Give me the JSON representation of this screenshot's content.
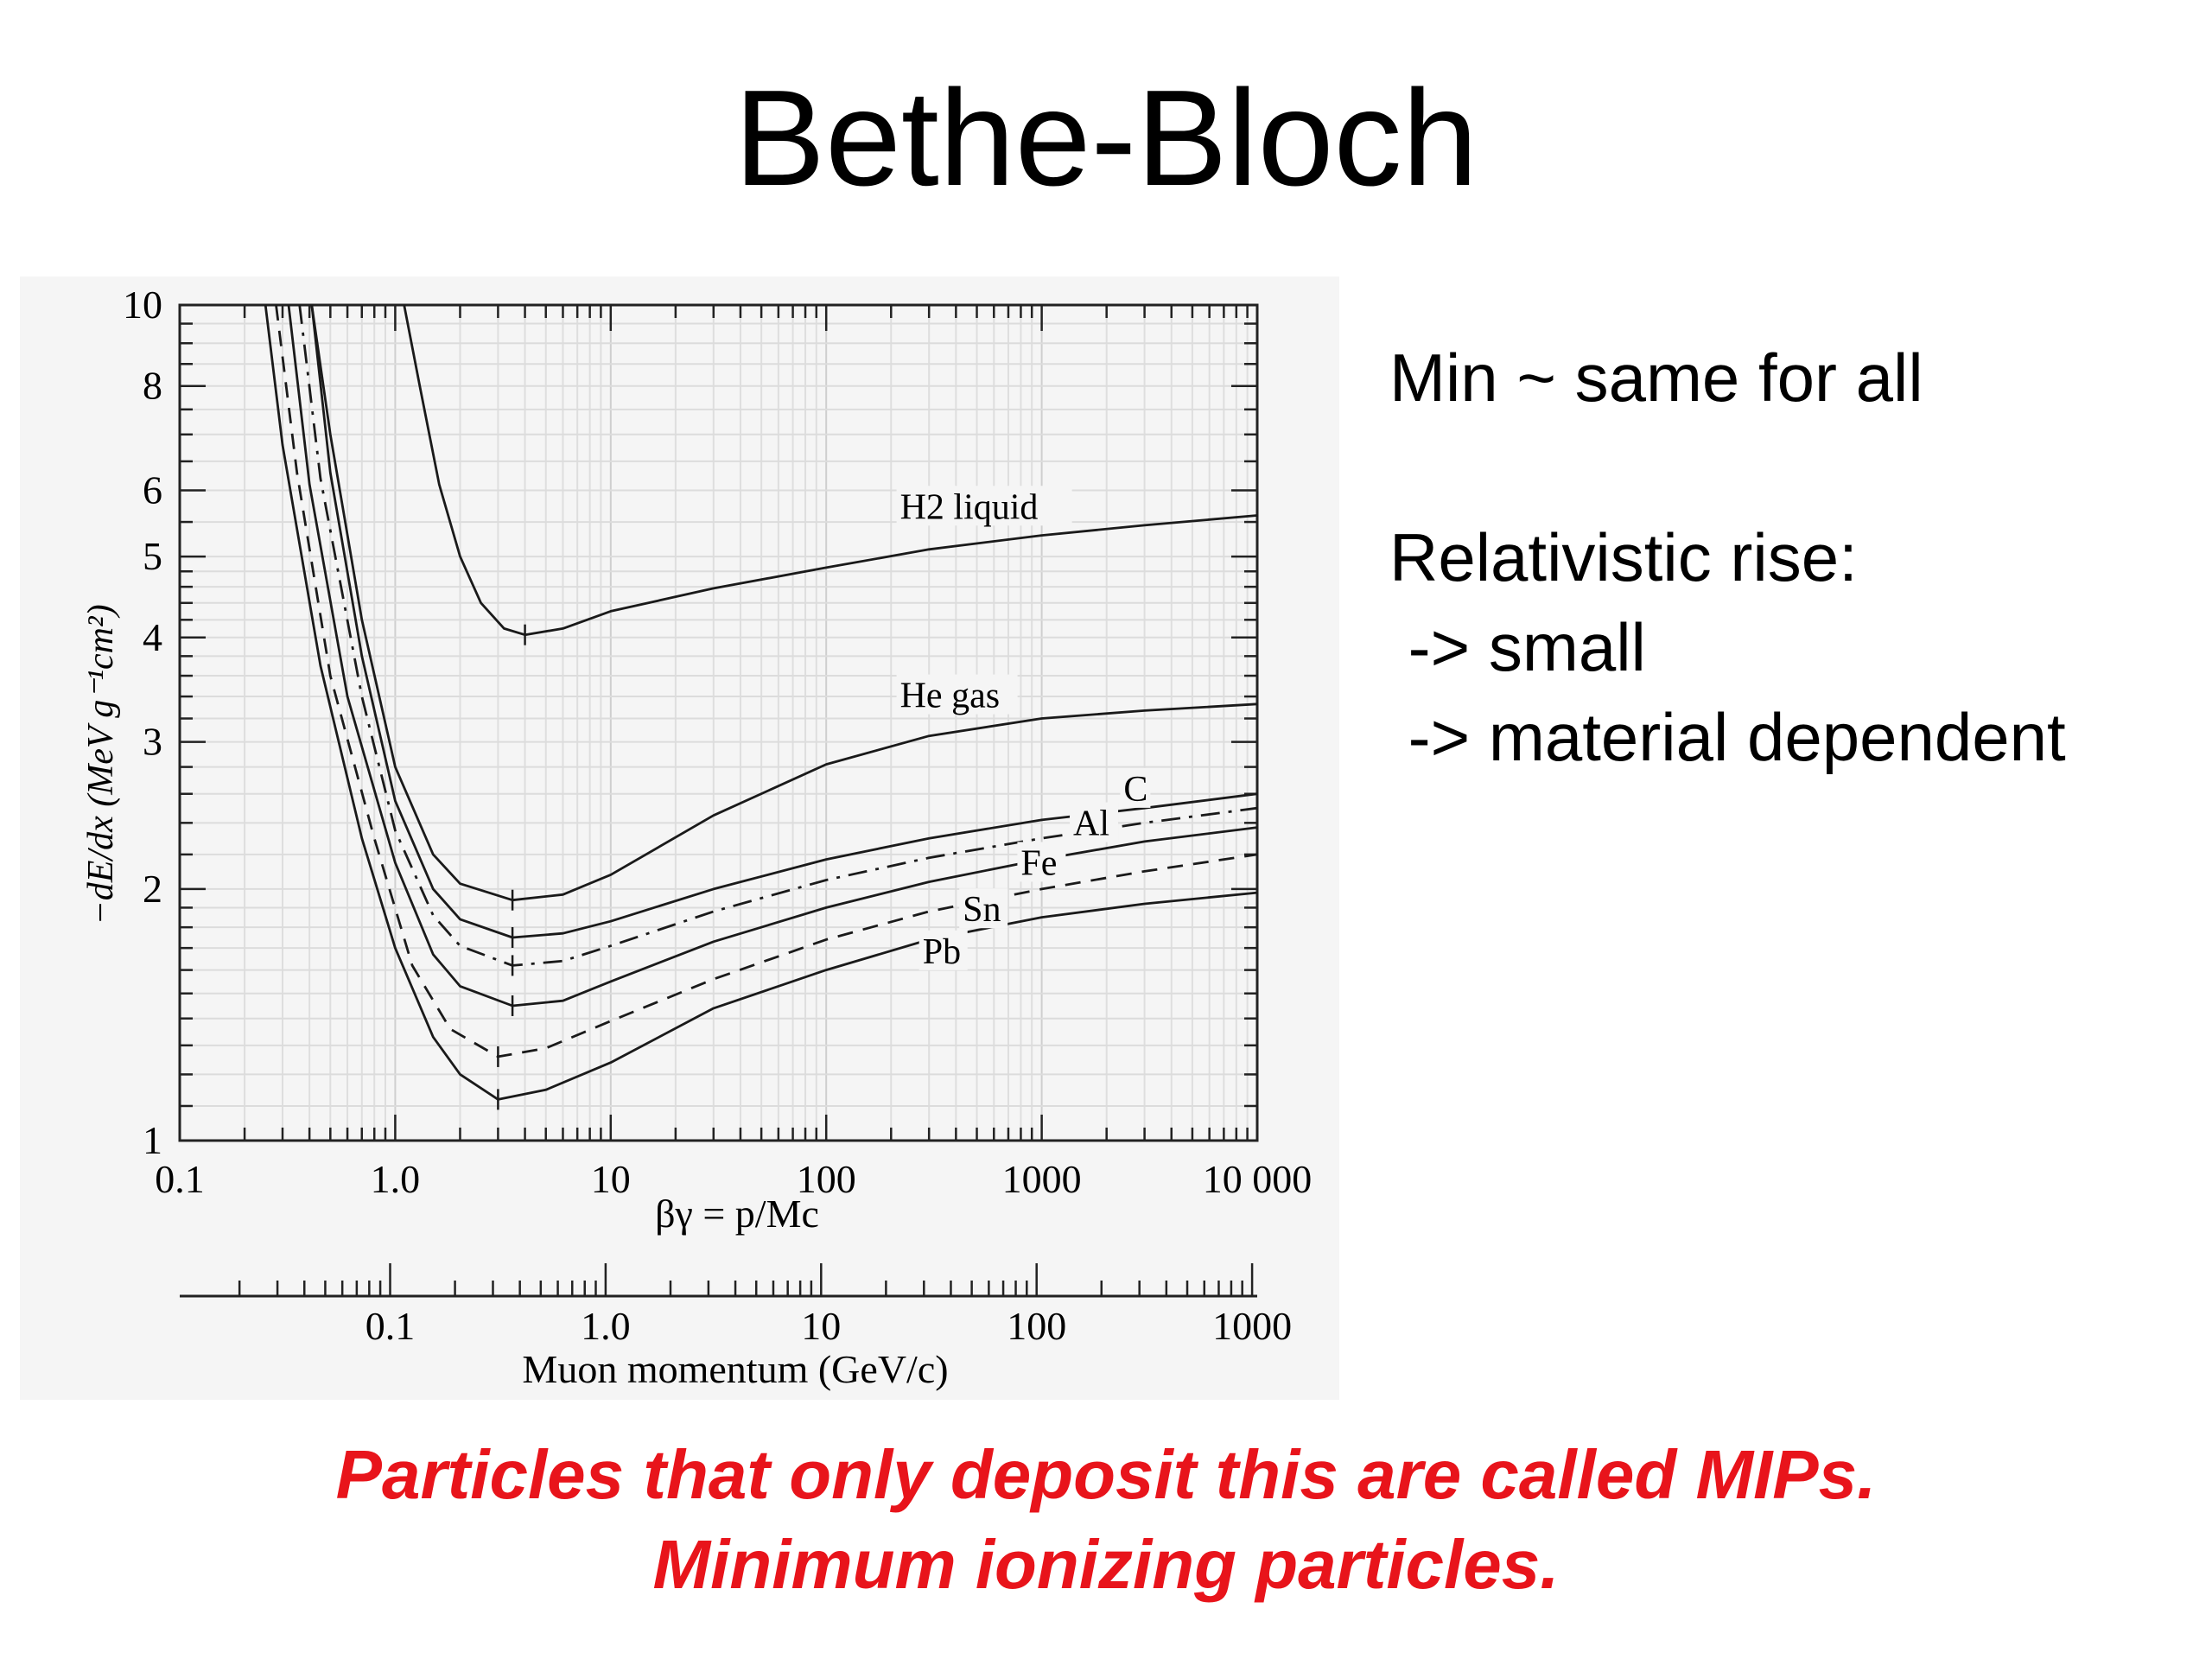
{
  "slide": {
    "title": "Bethe-Bloch",
    "notes": [
      "Min ~ same for all",
      "",
      "Relativistic rise:",
      " -> small",
      " -> material dependent"
    ],
    "caption": [
      "Particles that only deposit this are called MIPs.",
      "Minimum ionizing particles."
    ]
  },
  "chart_data": {
    "type": "line",
    "x_scale": "log",
    "y_scale": "log",
    "xlim": [
      0.1,
      10000
    ],
    "ylim": [
      1,
      10
    ],
    "xlabel": "βγ = p/Mc",
    "ylabel": "−dE/dx (MeV g⁻¹cm²)",
    "x_ticks": [
      "0.1",
      "1.0",
      "10",
      "100",
      "1000",
      "10 000"
    ],
    "y_ticks": [
      "1",
      "2",
      "3",
      "4",
      "5",
      "6",
      "8",
      "10"
    ],
    "y_tick_values": [
      1,
      2,
      3,
      4,
      5,
      6,
      8,
      10
    ],
    "secondary_axis": {
      "label": "Muon momentum (GeV/c)",
      "ticks": [
        "0.1",
        "1.0",
        "10",
        "100",
        "1000"
      ],
      "tick_values": [
        0.1,
        1,
        10,
        100,
        1000
      ],
      "range": [
        0.01056,
        1056
      ]
    },
    "grid": true,
    "series": [
      {
        "name": "H2 liquid",
        "style": "solid",
        "minimum": {
          "x": 4.0,
          "y": 4.03
        },
        "label_at": {
          "x": 220,
          "y": 5.55
        },
        "points": [
          [
            1.1,
            10
          ],
          [
            1.3,
            8.0
          ],
          [
            1.6,
            6.1
          ],
          [
            2.0,
            5.0
          ],
          [
            2.5,
            4.4
          ],
          [
            3.2,
            4.1
          ],
          [
            4.0,
            4.03
          ],
          [
            6,
            4.1
          ],
          [
            10,
            4.3
          ],
          [
            30,
            4.58
          ],
          [
            100,
            4.85
          ],
          [
            300,
            5.1
          ],
          [
            1000,
            5.3
          ],
          [
            3000,
            5.45
          ],
          [
            10000,
            5.6
          ]
        ]
      },
      {
        "name": "He gas",
        "style": "solid",
        "minimum": {
          "x": 3.5,
          "y": 1.94
        },
        "label_at": {
          "x": 220,
          "y": 3.3
        },
        "points": [
          [
            0.41,
            10
          ],
          [
            0.5,
            7.0
          ],
          [
            0.7,
            4.2
          ],
          [
            1.0,
            2.8
          ],
          [
            1.5,
            2.2
          ],
          [
            2.0,
            2.03
          ],
          [
            3.5,
            1.94
          ],
          [
            6,
            1.97
          ],
          [
            10,
            2.08
          ],
          [
            30,
            2.45
          ],
          [
            100,
            2.82
          ],
          [
            300,
            3.05
          ],
          [
            1000,
            3.2
          ],
          [
            3000,
            3.27
          ],
          [
            10000,
            3.33
          ]
        ]
      },
      {
        "name": "C",
        "style": "solid",
        "minimum": {
          "x": 3.5,
          "y": 1.75
        },
        "label_at": {
          "x": 2400,
          "y": 2.55
        },
        "points": [
          [
            0.41,
            10
          ],
          [
            0.5,
            6.3
          ],
          [
            0.7,
            3.8
          ],
          [
            1.0,
            2.55
          ],
          [
            1.5,
            2.0
          ],
          [
            2.0,
            1.84
          ],
          [
            3.5,
            1.75
          ],
          [
            6,
            1.77
          ],
          [
            10,
            1.83
          ],
          [
            30,
            2.0
          ],
          [
            100,
            2.17
          ],
          [
            300,
            2.3
          ],
          [
            1000,
            2.42
          ],
          [
            3000,
            2.5
          ],
          [
            10000,
            2.6
          ]
        ]
      },
      {
        "name": "Al",
        "style": "dash-dot",
        "minimum": {
          "x": 3.5,
          "y": 1.62
        },
        "label_at": {
          "x": 1400,
          "y": 2.32
        },
        "points": [
          [
            0.36,
            10
          ],
          [
            0.45,
            6.2
          ],
          [
            0.7,
            3.4
          ],
          [
            1.0,
            2.35
          ],
          [
            1.5,
            1.86
          ],
          [
            2.0,
            1.71
          ],
          [
            3.5,
            1.62
          ],
          [
            6,
            1.64
          ],
          [
            10,
            1.71
          ],
          [
            30,
            1.88
          ],
          [
            100,
            2.05
          ],
          [
            300,
            2.18
          ],
          [
            1000,
            2.3
          ],
          [
            3000,
            2.4
          ],
          [
            10000,
            2.5
          ]
        ]
      },
      {
        "name": "Fe",
        "style": "solid",
        "minimum": {
          "x": 3.5,
          "y": 1.45
        },
        "label_at": {
          "x": 800,
          "y": 2.08
        },
        "points": [
          [
            0.32,
            10
          ],
          [
            0.4,
            6.1
          ],
          [
            0.6,
            3.4
          ],
          [
            1.0,
            2.15
          ],
          [
            1.5,
            1.67
          ],
          [
            2.0,
            1.53
          ],
          [
            3.5,
            1.45
          ],
          [
            6,
            1.47
          ],
          [
            10,
            1.55
          ],
          [
            30,
            1.73
          ],
          [
            100,
            1.9
          ],
          [
            300,
            2.04
          ],
          [
            1000,
            2.17
          ],
          [
            3000,
            2.28
          ],
          [
            10000,
            2.37
          ]
        ]
      },
      {
        "name": "Sn",
        "style": "dashed",
        "minimum": {
          "x": 3.0,
          "y": 1.26
        },
        "label_at": {
          "x": 430,
          "y": 1.83
        },
        "points": [
          [
            0.28,
            10
          ],
          [
            0.35,
            6.3
          ],
          [
            0.5,
            3.6
          ],
          [
            0.8,
            2.3
          ],
          [
            1.2,
            1.62
          ],
          [
            1.8,
            1.36
          ],
          [
            3.0,
            1.26
          ],
          [
            5,
            1.29
          ],
          [
            10,
            1.39
          ],
          [
            30,
            1.56
          ],
          [
            100,
            1.74
          ],
          [
            300,
            1.88
          ],
          [
            1000,
            2.0
          ],
          [
            3000,
            2.1
          ],
          [
            10000,
            2.2
          ]
        ]
      },
      {
        "name": "Pb",
        "style": "solid",
        "minimum": {
          "x": 3.0,
          "y": 1.12
        },
        "label_at": {
          "x": 280,
          "y": 1.63
        },
        "points": [
          [
            0.25,
            10
          ],
          [
            0.3,
            6.8
          ],
          [
            0.45,
            3.7
          ],
          [
            0.7,
            2.3
          ],
          [
            1.0,
            1.7
          ],
          [
            1.5,
            1.33
          ],
          [
            2.0,
            1.2
          ],
          [
            3.0,
            1.12
          ],
          [
            5,
            1.15
          ],
          [
            10,
            1.24
          ],
          [
            30,
            1.44
          ],
          [
            100,
            1.6
          ],
          [
            300,
            1.74
          ],
          [
            1000,
            1.85
          ],
          [
            3000,
            1.92
          ],
          [
            10000,
            1.98
          ]
        ]
      }
    ]
  }
}
